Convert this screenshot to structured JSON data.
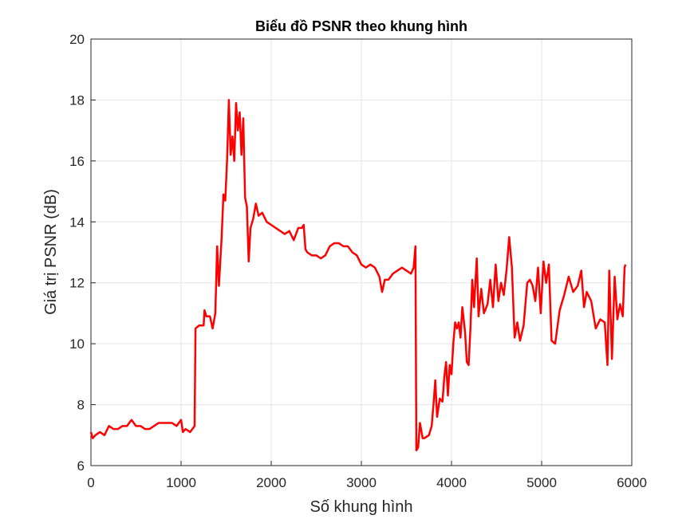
{
  "chart_data": {
    "type": "line",
    "title": "Biểu đồ PSNR theo khung hình",
    "x_label": "Số khung hình",
    "y_label": "Giá trị PSNR (dB)",
    "xlim": [
      0,
      6000
    ],
    "xticks": [
      0,
      1000,
      2000,
      3000,
      4000,
      5000,
      6000
    ],
    "ylim": [
      6,
      20
    ],
    "yticks": [
      6,
      8,
      10,
      12,
      14,
      16,
      18,
      20
    ],
    "grid": true,
    "series": [
      {
        "color": "#ff0000",
        "x": [
          0,
          20,
          50,
          100,
          150,
          200,
          250,
          300,
          350,
          400,
          450,
          500,
          550,
          600,
          650,
          700,
          750,
          800,
          850,
          900,
          950,
          1000,
          1020,
          1050,
          1100,
          1150,
          1160,
          1200,
          1250,
          1260,
          1280,
          1320,
          1350,
          1380,
          1400,
          1420,
          1450,
          1470,
          1490,
          1510,
          1530,
          1550,
          1570,
          1590,
          1610,
          1630,
          1650,
          1670,
          1690,
          1710,
          1730,
          1750,
          1770,
          1800,
          1830,
          1860,
          1900,
          1950,
          2000,
          2050,
          2100,
          2150,
          2200,
          2250,
          2300,
          2340,
          2360,
          2380,
          2400,
          2450,
          2500,
          2550,
          2600,
          2650,
          2700,
          2750,
          2800,
          2850,
          2900,
          2950,
          3000,
          3050,
          3100,
          3150,
          3200,
          3230,
          3260,
          3300,
          3350,
          3400,
          3450,
          3500,
          3550,
          3580,
          3600,
          3610,
          3630,
          3650,
          3680,
          3700,
          3750,
          3780,
          3800,
          3820,
          3840,
          3870,
          3900,
          3920,
          3940,
          3960,
          3980,
          4000,
          4020,
          4040,
          4060,
          4080,
          4100,
          4120,
          4150,
          4170,
          4190,
          4210,
          4230,
          4250,
          4280,
          4300,
          4330,
          4360,
          4400,
          4430,
          4460,
          4490,
          4520,
          4550,
          4580,
          4610,
          4640,
          4670,
          4700,
          4730,
          4760,
          4800,
          4840,
          4870,
          4900,
          4930,
          4960,
          4990,
          5020,
          5050,
          5080,
          5110,
          5150,
          5200,
          5250,
          5300,
          5350,
          5400,
          5440,
          5470,
          5500,
          5550,
          5600,
          5650,
          5700,
          5730,
          5750,
          5780,
          5810,
          5840,
          5870,
          5900,
          5920,
          5930
        ],
        "values": [
          7.1,
          6.9,
          7.0,
          7.1,
          7.0,
          7.3,
          7.2,
          7.2,
          7.3,
          7.3,
          7.5,
          7.3,
          7.3,
          7.2,
          7.2,
          7.3,
          7.4,
          7.4,
          7.4,
          7.4,
          7.3,
          7.5,
          7.1,
          7.2,
          7.1,
          7.3,
          10.5,
          10.6,
          10.6,
          11.1,
          10.9,
          10.9,
          10.5,
          11.0,
          13.2,
          11.9,
          13.5,
          14.9,
          14.7,
          16.0,
          18.0,
          16.2,
          16.8,
          16.0,
          17.9,
          17.0,
          17.6,
          16.2,
          17.4,
          14.8,
          14.5,
          12.7,
          13.8,
          14.1,
          14.6,
          14.2,
          14.3,
          14.0,
          13.9,
          13.8,
          13.7,
          13.6,
          13.7,
          13.4,
          13.8,
          13.8,
          13.9,
          13.1,
          13.0,
          12.9,
          12.9,
          12.8,
          12.9,
          13.2,
          13.3,
          13.3,
          13.2,
          13.2,
          13.0,
          12.9,
          12.6,
          12.5,
          12.6,
          12.5,
          12.2,
          11.7,
          12.1,
          12.1,
          12.3,
          12.4,
          12.5,
          12.4,
          12.3,
          12.5,
          13.2,
          6.5,
          6.6,
          7.4,
          6.9,
          6.9,
          7.0,
          7.3,
          8.0,
          8.8,
          7.6,
          8.2,
          8.1,
          8.9,
          9.4,
          8.3,
          9.3,
          9.0,
          10.0,
          10.7,
          10.5,
          10.7,
          10.2,
          11.2,
          10.4,
          9.4,
          9.3,
          10.5,
          12.1,
          11.2,
          12.8,
          10.9,
          11.8,
          11.0,
          11.3,
          12.1,
          11.2,
          12.6,
          11.4,
          12.0,
          11.6,
          12.4,
          13.5,
          12.5,
          10.2,
          10.7,
          10.1,
          10.6,
          12.0,
          12.1,
          11.9,
          11.4,
          12.5,
          11.0,
          12.7,
          12.0,
          12.6,
          10.1,
          10.0,
          11.1,
          11.6,
          12.2,
          11.7,
          11.9,
          12.4,
          11.2,
          11.7,
          11.4,
          10.5,
          10.8,
          10.7,
          9.3,
          12.4,
          9.5,
          12.2,
          10.8,
          11.3,
          10.9,
          12.5,
          12.6
        ]
      }
    ]
  }
}
